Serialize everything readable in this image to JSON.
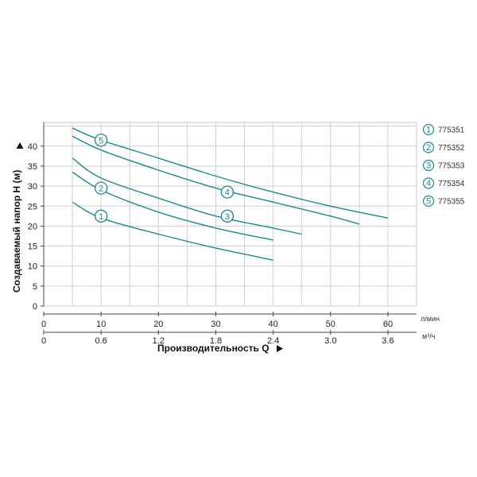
{
  "chart_data": {
    "type": "line",
    "xlabel": "Производительность Q",
    "ylabel": "Создаваемый напор H (м)",
    "x_unit_primary": "л/мин",
    "x_unit_secondary": "м³/ч",
    "xlim": [
      0,
      65
    ],
    "ylim": [
      0,
      45
    ],
    "x_ticks": [
      "0",
      "10",
      "20",
      "30",
      "40",
      "50",
      "60"
    ],
    "x_ticks_secondary": [
      "0",
      "0.6",
      "1.2",
      "1.8",
      "2.4",
      "3.0",
      "3.6"
    ],
    "y_ticks": [
      "0",
      "5",
      "10",
      "15",
      "20",
      "25",
      "30",
      "35",
      "40"
    ],
    "grid": true,
    "legend_position": "right",
    "line_color": "#1a8a8c",
    "series": [
      {
        "name": "775351",
        "marker": "1",
        "x": [
          5,
          10,
          20,
          30,
          40
        ],
        "y": [
          26,
          22,
          18,
          14.5,
          11.5
        ]
      },
      {
        "name": "775352",
        "marker": "2",
        "x": [
          5,
          10,
          20,
          30,
          40
        ],
        "y": [
          33.5,
          29,
          23.5,
          19.5,
          16.5
        ]
      },
      {
        "name": "775353",
        "marker": "3",
        "x": [
          5,
          10,
          20,
          30,
          40,
          45
        ],
        "y": [
          37,
          32,
          27,
          22.5,
          19.5,
          18
        ]
      },
      {
        "name": "775354",
        "marker": "4",
        "x": [
          5,
          10,
          20,
          30,
          40,
          50,
          55
        ],
        "y": [
          42.5,
          39,
          34,
          29.5,
          26,
          22.5,
          20.5
        ]
      },
      {
        "name": "775355",
        "marker": "5",
        "x": [
          5,
          10,
          20,
          30,
          40,
          50,
          60
        ],
        "y": [
          44.5,
          41.5,
          37,
          32.5,
          28.5,
          25,
          22
        ]
      }
    ],
    "marker_positions": [
      {
        "label": "1",
        "x": 10,
        "y": 22.5
      },
      {
        "label": "2",
        "x": 10,
        "y": 29.5
      },
      {
        "label": "3",
        "x": 32,
        "y": 22.5
      },
      {
        "label": "4",
        "x": 32,
        "y": 28.5
      },
      {
        "label": "5",
        "x": 10,
        "y": 41.5
      }
    ]
  }
}
